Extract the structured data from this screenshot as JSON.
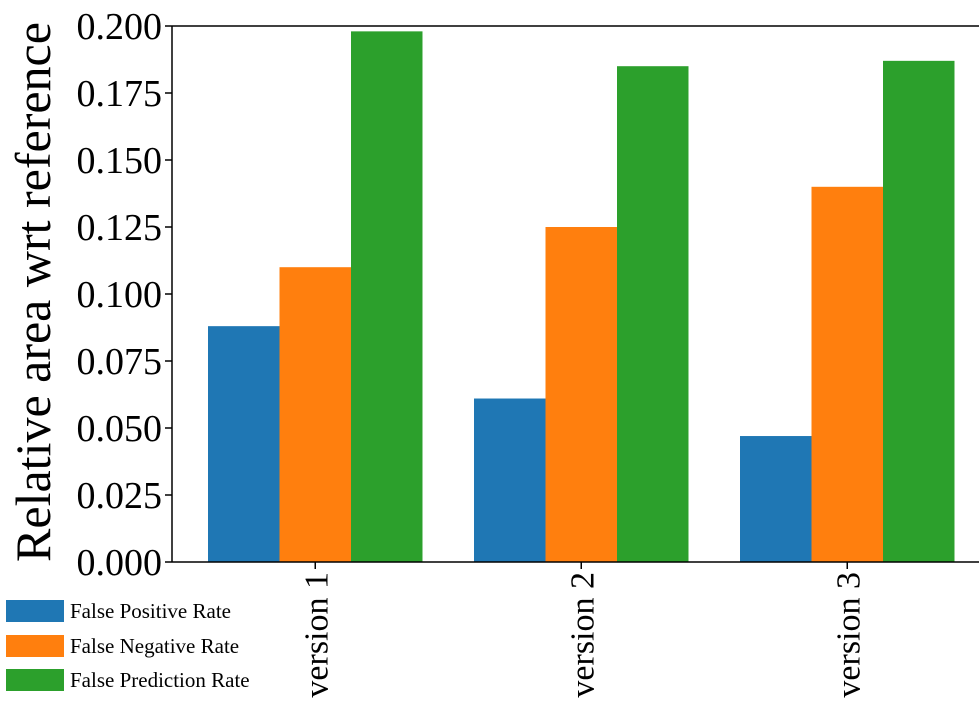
{
  "chart_data": {
    "type": "bar",
    "categories": [
      "version 1",
      "version 2",
      "version 3"
    ],
    "series": [
      {
        "name": "False Positive Rate",
        "values": [
          0.088,
          0.061,
          0.047
        ],
        "color": "#1f77b4"
      },
      {
        "name": "False Negative Rate",
        "values": [
          0.11,
          0.125,
          0.14
        ],
        "color": "#ff7f0e"
      },
      {
        "name": "False Prediction Rate",
        "values": [
          0.198,
          0.185,
          0.187
        ],
        "color": "#2ca02c"
      }
    ],
    "ylabel": "Relative area wrt reference",
    "ylim": [
      0,
      0.2
    ],
    "yticks": [
      "0.000",
      "0.025",
      "0.050",
      "0.075",
      "0.100",
      "0.125",
      "0.150",
      "0.175",
      "0.200"
    ],
    "legend_position": "bottom-left",
    "grid": false
  }
}
